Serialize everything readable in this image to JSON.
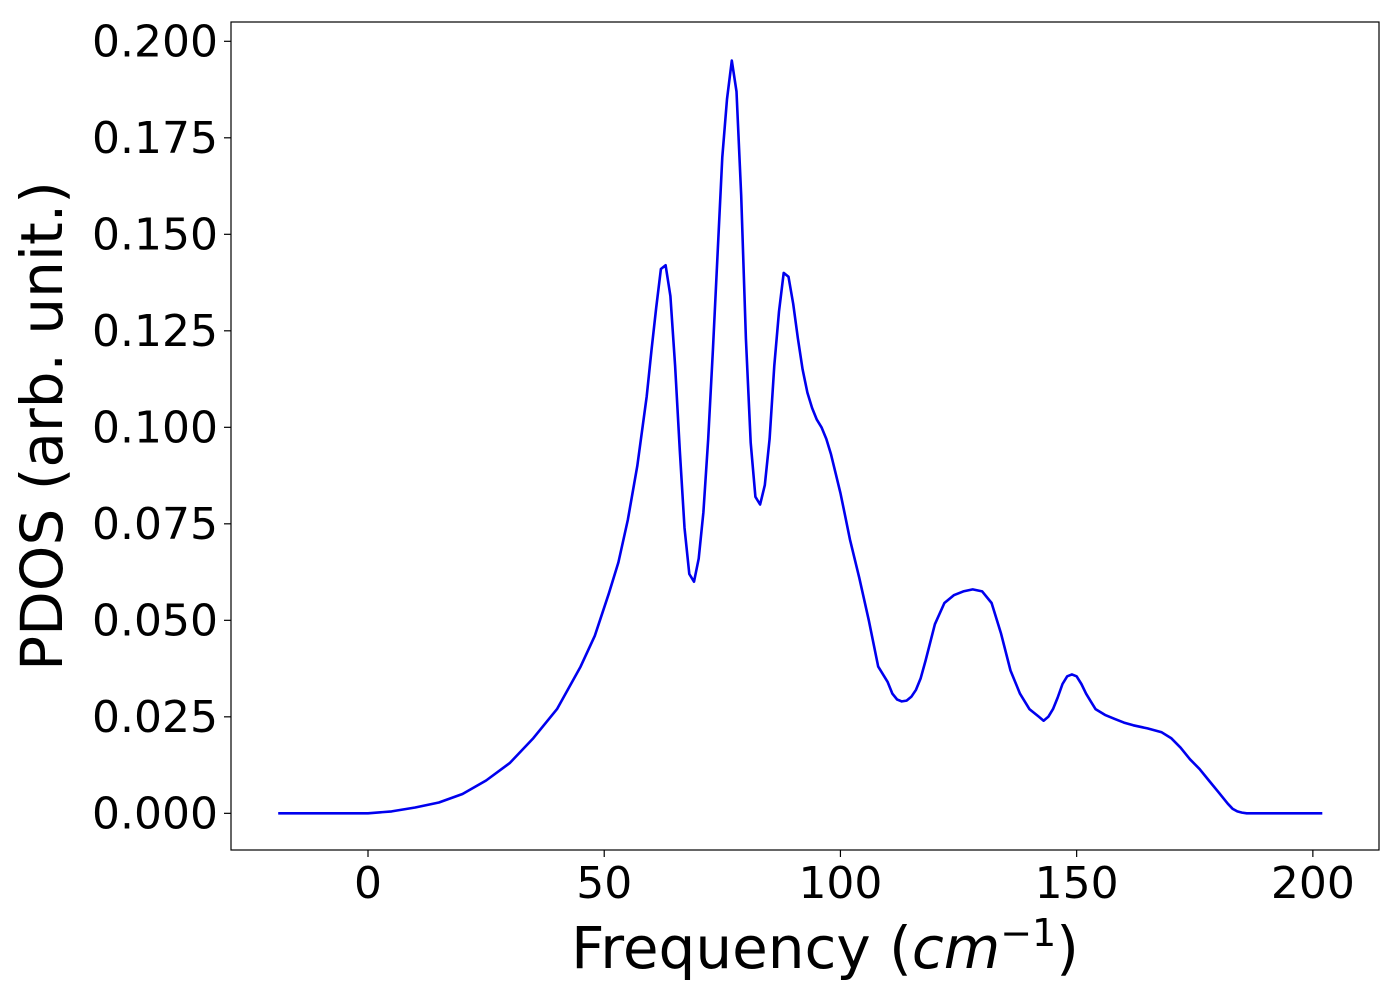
{
  "chart_data": {
    "type": "line",
    "title": "",
    "xlabel": "Frequency (",
    "xlabel_math": "cm",
    "xlabel_sup": "−1",
    "xlabel_close": ")",
    "ylabel": "PDOS (arb. unit.)",
    "xlim": [
      -29,
      214
    ],
    "ylim": [
      -0.0095,
      0.205
    ],
    "xticks": [
      0,
      50,
      100,
      150,
      200
    ],
    "xtick_labels": [
      "0",
      "50",
      "100",
      "150",
      "200"
    ],
    "yticks": [
      0.0,
      0.025,
      0.05,
      0.075,
      0.1,
      0.125,
      0.15,
      0.175,
      0.2
    ],
    "ytick_labels": [
      "0.000",
      "0.025",
      "0.050",
      "0.075",
      "0.100",
      "0.125",
      "0.150",
      "0.175",
      "0.200"
    ],
    "grid": false,
    "series": [
      {
        "color": "#0000ee",
        "x": [
          -19,
          -10,
          0,
          5,
          10,
          15,
          20,
          25,
          30,
          35,
          40,
          45,
          48,
          51,
          53,
          55,
          57,
          59,
          60,
          61,
          62,
          63,
          64,
          65,
          66,
          67,
          68,
          69,
          70,
          71,
          72,
          73,
          74,
          75,
          76,
          77,
          78,
          79,
          80,
          81,
          82,
          83,
          84,
          85,
          86,
          87,
          88,
          89,
          90,
          91,
          92,
          93,
          94,
          95,
          96,
          97,
          98,
          99,
          100,
          101,
          102,
          104,
          106,
          108,
          110,
          111,
          112,
          113,
          114,
          115,
          116,
          117,
          118,
          120,
          122,
          124,
          126,
          128,
          130,
          132,
          134,
          136,
          138,
          140,
          142,
          143,
          144,
          145,
          146,
          147,
          148,
          149,
          150,
          151,
          152,
          153,
          154,
          156,
          158,
          160,
          162,
          165,
          168,
          170,
          172,
          174,
          176,
          178,
          180,
          182,
          183,
          184,
          185,
          186,
          187,
          190,
          195,
          202
        ],
        "y": [
          0.0,
          0.0,
          0.0,
          0.0005,
          0.0015,
          0.0028,
          0.005,
          0.0085,
          0.013,
          0.0195,
          0.027,
          0.038,
          0.046,
          0.057,
          0.065,
          0.076,
          0.09,
          0.108,
          0.12,
          0.131,
          0.141,
          0.142,
          0.134,
          0.116,
          0.094,
          0.074,
          0.062,
          0.06,
          0.066,
          0.078,
          0.097,
          0.12,
          0.145,
          0.17,
          0.185,
          0.195,
          0.187,
          0.16,
          0.123,
          0.096,
          0.082,
          0.08,
          0.085,
          0.097,
          0.116,
          0.13,
          0.14,
          0.139,
          0.132,
          0.123,
          0.115,
          0.109,
          0.105,
          0.102,
          0.1,
          0.097,
          0.093,
          0.088,
          0.083,
          0.077,
          0.071,
          0.061,
          0.05,
          0.038,
          0.034,
          0.031,
          0.0295,
          0.029,
          0.0292,
          0.0302,
          0.032,
          0.035,
          0.0395,
          0.049,
          0.0545,
          0.0565,
          0.0575,
          0.058,
          0.0575,
          0.0545,
          0.0465,
          0.037,
          0.031,
          0.027,
          0.025,
          0.024,
          0.025,
          0.027,
          0.03,
          0.0335,
          0.0355,
          0.036,
          0.0355,
          0.0335,
          0.031,
          0.029,
          0.027,
          0.0255,
          0.0245,
          0.0235,
          0.0228,
          0.022,
          0.021,
          0.0195,
          0.017,
          0.014,
          0.0115,
          0.0085,
          0.0055,
          0.0025,
          0.0012,
          0.0005,
          0.0002,
          0.0,
          0.0,
          0.0,
          0.0,
          0.0
        ]
      }
    ]
  }
}
